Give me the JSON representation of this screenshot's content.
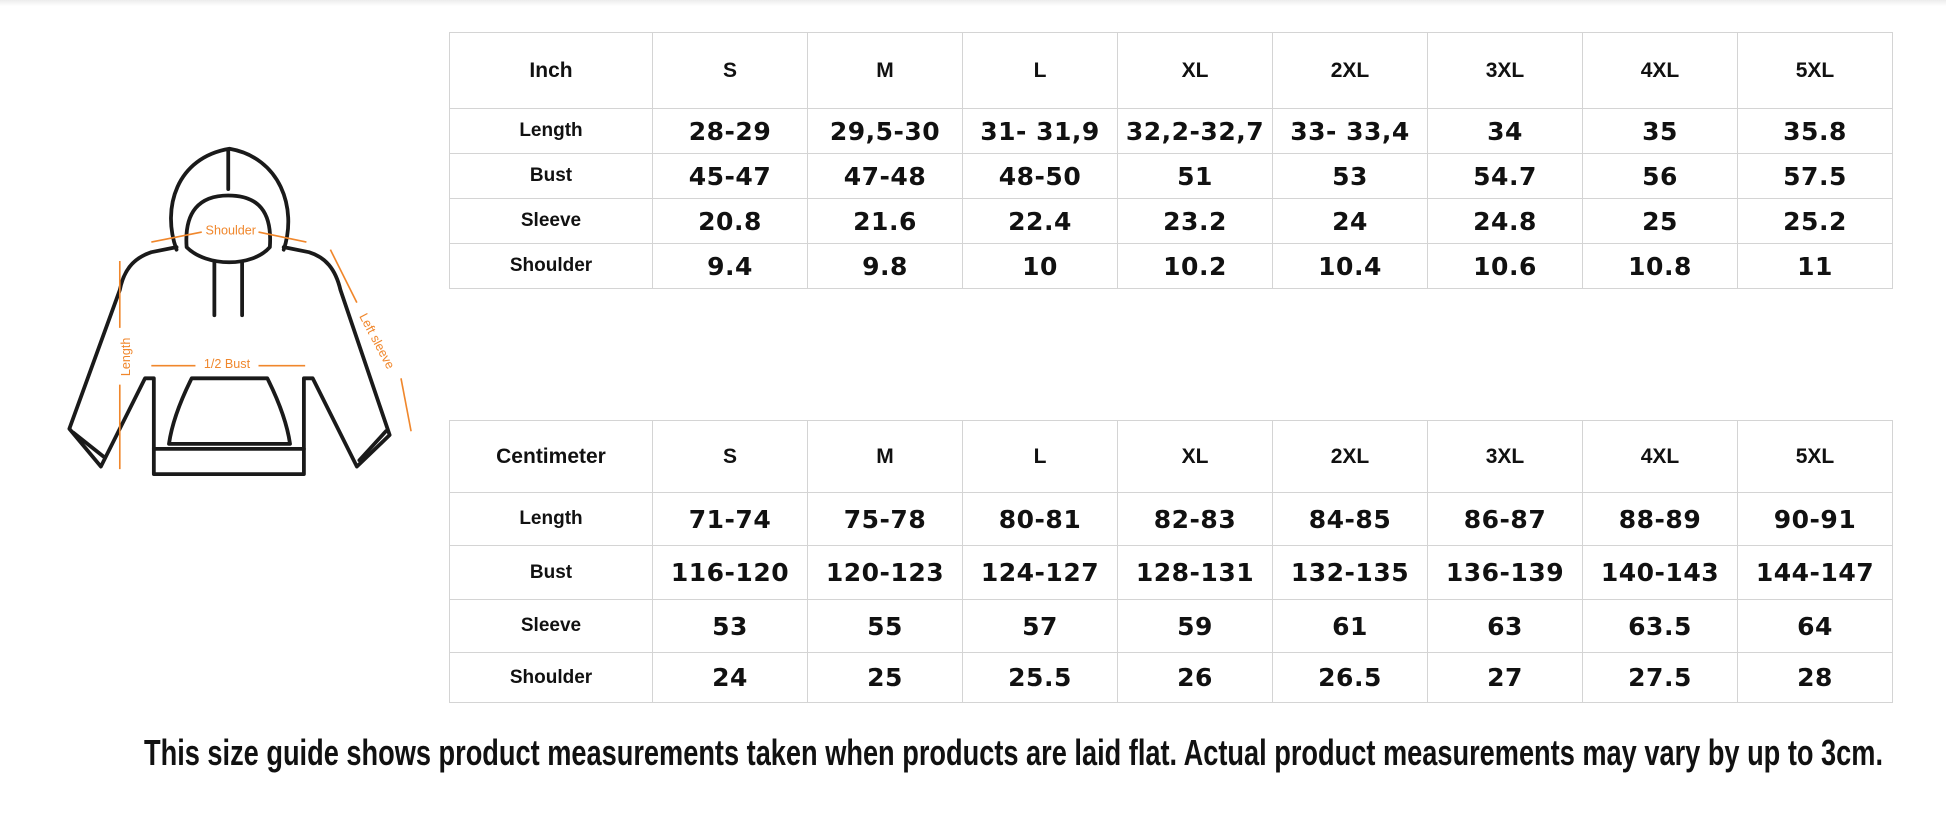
{
  "illustration": {
    "labels": {
      "shoulder": "Shoulder",
      "bust": "1/2 Bust",
      "length": "Length",
      "sleeve": "Left sleeve"
    }
  },
  "tables": [
    {
      "header": [
        "Inch",
        "S",
        "M",
        "L",
        "XL",
        "2XL",
        "3XL",
        "4XL",
        "5XL"
      ],
      "rows": [
        [
          "Length",
          "28-29",
          "29,5-30",
          "31- 31,9",
          "32,2-32,7",
          "33- 33,4",
          "34",
          "35",
          "35.8"
        ],
        [
          "Bust",
          "45-47",
          "47-48",
          "48-50",
          "51",
          "53",
          "54.7",
          "56",
          "57.5"
        ],
        [
          "Sleeve",
          "20.8",
          "21.6",
          "22.4",
          "23.2",
          "24",
          "24.8",
          "25",
          "25.2"
        ],
        [
          "Shoulder",
          "9.4",
          "9.8",
          "10",
          "10.2",
          "10.4",
          "10.6",
          "10.8",
          "11"
        ]
      ]
    },
    {
      "header": [
        "Centimeter",
        "S",
        "M",
        "L",
        "XL",
        "2XL",
        "3XL",
        "4XL",
        "5XL"
      ],
      "rows": [
        [
          "Length",
          "71-74",
          "75-78",
          "80-81",
          "82-83",
          "84-85",
          "86-87",
          "88-89",
          "90-91"
        ],
        [
          "Bust",
          "116-120",
          "120-123",
          "124-127",
          "128-131",
          "132-135",
          "136-139",
          "140-143",
          "144-147"
        ],
        [
          "Sleeve",
          "53",
          "55",
          "57",
          "59",
          "61",
          "63",
          "63.5",
          "64"
        ],
        [
          "Shoulder",
          "24",
          "25",
          "25.5",
          "26",
          "26.5",
          "27",
          "27.5",
          "28"
        ]
      ]
    }
  ],
  "footer": "This size guide shows product measurements taken when products are laid flat. Actual product measurements may vary by up to 3cm."
}
